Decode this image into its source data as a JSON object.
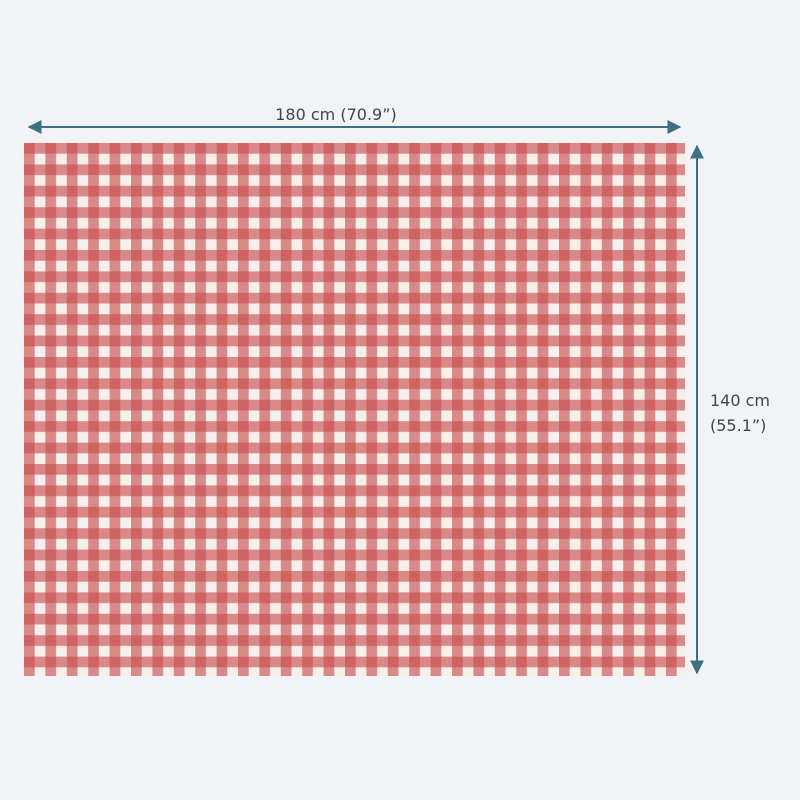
{
  "width_label": "180 cm (70.9”)",
  "height_label": [
    "140 cm",
    "(55.1”)"
  ]
}
